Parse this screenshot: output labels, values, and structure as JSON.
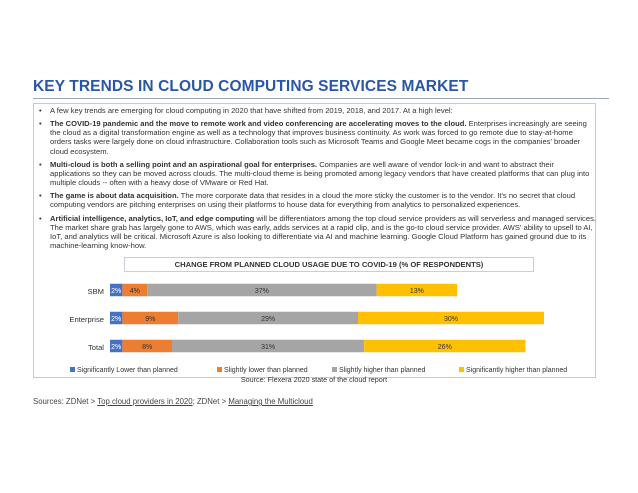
{
  "title": "KEY TRENDS IN CLOUD COMPUTING SERVICES MARKET",
  "bullets": [
    {
      "bold": "",
      "text": "A few key trends are emerging for cloud computing in 2020 that have shifted from 2019, 2018, and 2017.  At a high level:"
    },
    {
      "bold": "The COVID-19 pandemic and the move to remote work and video conferencing are accelerating moves to the cloud.",
      "text": " Enterprises increasingly are seeing the cloud as a digital transformation engine as well as a technology that improves business continuity. As work was forced to go remote due to stay-at-home orders tasks were largely done on cloud infrastructure. Collaboration tools such as Microsoft Teams and Google Meet became cogs in the companies' broader cloud ecosystem."
    },
    {
      "bold": "Multi-cloud is both a selling point and an aspirational goal for enterprises.",
      "text": " Companies are well aware of vendor lock-in and want to abstract their applications so they can be moved across clouds. The multi-cloud theme is being promoted among legacy vendors that have created platforms that can plug into multiple clouds -- often with a heavy dose of VMware or Red Hat."
    },
    {
      "bold": "The game is about data acquisition.",
      "text": " The more corporate data that resides in a cloud the more sticky the customer is to the vendor. It's no secret that cloud computing vendors are pitching enterprises on using their platforms to house data for everything from analytics to personalized experiences."
    },
    {
      "bold": "Artificial intelligence, analytics, IoT, and edge computing",
      "text": " will be differentiators among the top cloud service providers as will serverless and managed services. The market share grab has largely gone to AWS, which was early, adds services at a rapid clip, and is the go-to cloud service provider. AWS' ability to upsell to AI, IoT, and analytics will be critical. Microsoft Azure is also looking to differentiate via AI and machine learning. Google Cloud Platform has gained ground due to its machine-learning know-how."
    }
  ],
  "chart_data": {
    "type": "bar",
    "orientation": "horizontal",
    "stacked": true,
    "title": "CHANGE FROM PLANNED CLOUD USAGE DUE TO COVID-19 (% OF RESPONDENTS)",
    "categories": [
      "SBM",
      "Enterprise",
      "Total"
    ],
    "series": [
      {
        "name": "Significantly Lower than planned",
        "color": "#4472c4",
        "values": [
          2,
          2,
          2
        ]
      },
      {
        "name": "Slightly lower than planned",
        "color": "#ed7d31",
        "values": [
          4,
          9,
          8
        ]
      },
      {
        "name": "Slightly higher than planned",
        "color": "#a5a5a5",
        "values": [
          37,
          29,
          31
        ]
      },
      {
        "name": "Significantly higher than planned",
        "color": "#ffc000",
        "values": [
          13,
          30,
          26
        ]
      }
    ],
    "value_suffix": "%",
    "legend_position": "bottom",
    "source": "Source: Flexera 2020 state of the cloud report"
  },
  "sources": {
    "prefix": "Sources: ZDNet > ",
    "link1": "Top cloud providers in 2020",
    "middle": "; ZDNet > ",
    "link2": "Managing the  Multicloud"
  }
}
